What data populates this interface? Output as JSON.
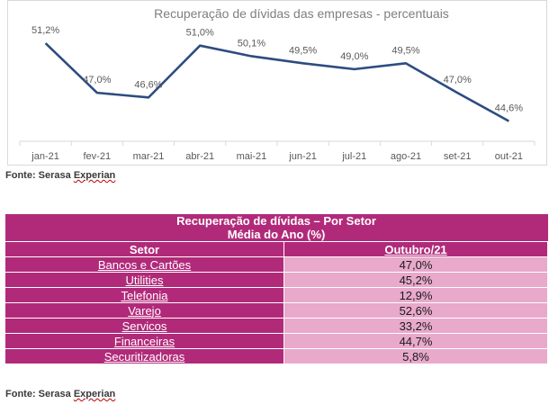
{
  "chart_data": {
    "type": "line",
    "title": "Recuperação de dívidas das empresas - percentuais",
    "categories": [
      "jan-21",
      "fev-21",
      "mar-21",
      "abr-21",
      "mai-21",
      "jun-21",
      "jul-21",
      "ago-21",
      "set-21",
      "out-21"
    ],
    "values": [
      51.2,
      47.0,
      46.6,
      51.0,
      50.1,
      49.5,
      49.0,
      49.5,
      47.0,
      44.6
    ],
    "data_labels": [
      "51,2%",
      "47,0%",
      "46,6%",
      "51,0%",
      "50,1%",
      "49,5%",
      "49,0%",
      "49,5%",
      "47,0%",
      "44,6%"
    ],
    "ylim": [
      43.5,
      52.5
    ],
    "line_color": "#2e4c80",
    "grid": false
  },
  "source_top": {
    "label": "Fonte: Serasa",
    "name": "Experian"
  },
  "table": {
    "title_line1": "Recuperação de dívidas – Por Setor",
    "title_line2": "Média do Ano (%)",
    "col_sector": "Setor",
    "col_month": "Outubro/21",
    "rows": [
      {
        "sector": "Bancos e Cartões",
        "value": "47,0%"
      },
      {
        "sector": "Utilities",
        "value": "45,2%"
      },
      {
        "sector": "Telefonia",
        "value": "12,9%"
      },
      {
        "sector": "Varejo",
        "value": "52,6%"
      },
      {
        "sector": "Servicos",
        "value": "33,2%"
      },
      {
        "sector": "Financeiras",
        "value": "44,7%"
      },
      {
        "sector": "Securitizadoras",
        "value": "5,8%"
      }
    ],
    "colors": {
      "header": "#b12a7a",
      "value_cell": "#e8a9cb"
    }
  },
  "source_bottom": {
    "label": "Fonte: Serasa",
    "name": "Experian"
  }
}
